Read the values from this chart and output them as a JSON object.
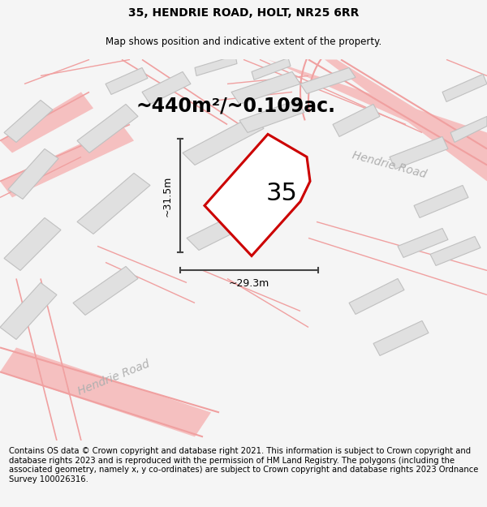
{
  "title": "35, HENDRIE ROAD, HOLT, NR25 6RR",
  "subtitle": "Map shows position and indicative extent of the property.",
  "area_label": "~440m²/~0.109ac.",
  "plot_number": "35",
  "dim_height": "~31.5m",
  "dim_width": "~29.3m",
  "road_label_bottom": "Hendrie Road",
  "road_label_right": "Hendrie Road",
  "footer_text": "Contains OS data © Crown copyright and database right 2021. This information is subject to Crown copyright and database rights 2023 and is reproduced with the permission of HM Land Registry. The polygons (including the associated geometry, namely x, y co-ordinates) are subject to Crown copyright and database rights 2023 Ordnance Survey 100026316.",
  "bg_color": "#f5f5f5",
  "map_bg": "#ffffff",
  "plot_edge_color": "#cc0000",
  "road_fill_color": "#f5c0c0",
  "road_line_color": "#f0a0a0",
  "building_fill": "#e0e0e0",
  "building_edge": "#c0c0c0",
  "dim_line_color": "#444444",
  "road_label_color": "#b0b0b0",
  "title_fontsize": 10,
  "subtitle_fontsize": 8.5,
  "footer_fontsize": 7.2,
  "area_fontsize": 17,
  "plot_num_fontsize": 22,
  "dim_fontsize": 9,
  "road_label_fontsize": 10
}
